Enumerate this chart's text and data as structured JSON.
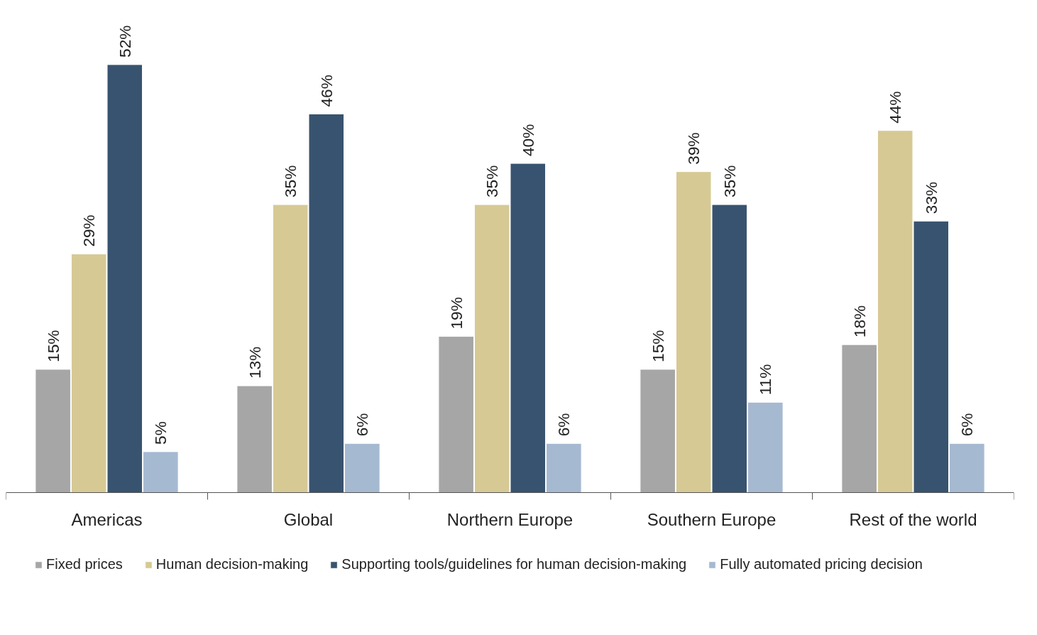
{
  "chart_data": {
    "type": "bar",
    "categories": [
      "Americas",
      "Global",
      "Northern Europe",
      "Southern Europe",
      "Rest of the world"
    ],
    "series": [
      {
        "name": "Fixed prices",
        "color": "#a6a6a6",
        "values": [
          15,
          13,
          19,
          15,
          18
        ],
        "value_labels": [
          "15%",
          "13%",
          "19%",
          "15%",
          "18%"
        ]
      },
      {
        "name": "Human decision-making",
        "color": "#d6c994",
        "values": [
          29,
          35,
          35,
          39,
          44
        ],
        "value_labels": [
          "29%",
          "35%",
          "35%",
          "39%",
          "44%"
        ]
      },
      {
        "name": "Supporting tools/guidelines for human decision-making",
        "color": "#38536f",
        "values": [
          52,
          46,
          40,
          35,
          33
        ],
        "value_labels": [
          "52%",
          "46%",
          "40%",
          "35%",
          "33%"
        ]
      },
      {
        "name": "Fully automated pricing decision",
        "color": "#a5b9d1",
        "values": [
          5,
          6,
          6,
          11,
          6
        ],
        "value_labels": [
          "5%",
          "6%",
          "6%",
          "11%",
          "6%"
        ]
      }
    ],
    "legend": "bottom",
    "grid": false
  }
}
